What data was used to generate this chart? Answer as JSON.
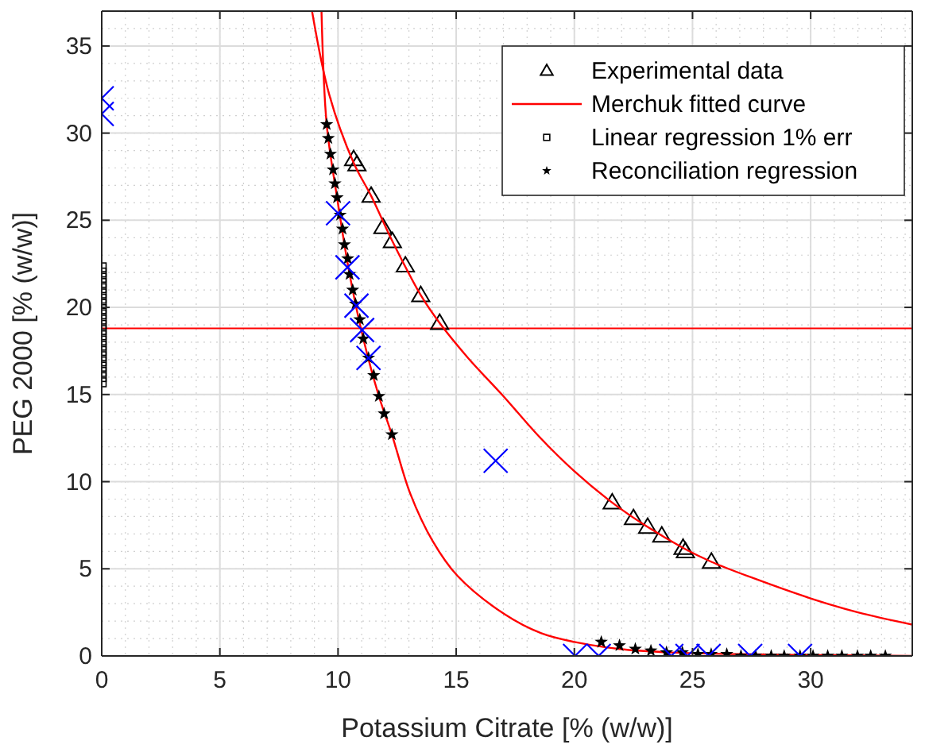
{
  "chart_data": {
    "type": "scatter",
    "xlabel": "Potassium Citrate [% (w/w)]",
    "ylabel": "PEG 2000 [% (w/w)]",
    "xlim": [
      0,
      34.3
    ],
    "ylim": [
      0,
      37
    ],
    "xticks": [
      0,
      5,
      10,
      15,
      20,
      25,
      30
    ],
    "yticks": [
      0,
      5,
      10,
      15,
      20,
      25,
      30,
      35
    ],
    "grid": true,
    "legend": "top right",
    "ref_lines": [
      {
        "axis": "y",
        "value": 18.8,
        "color": "#ff0000"
      }
    ],
    "series": [
      {
        "name": "Experimental data",
        "marker": "triangle",
        "color": "#000000",
        "x": [
          10.66,
          10.8,
          11.4,
          11.9,
          12.3,
          12.85,
          13.5,
          14.3,
          21.6,
          22.5,
          23.1,
          23.7,
          24.6,
          24.7,
          25.8
        ],
        "values": [
          28.5,
          28.2,
          26.4,
          24.6,
          23.8,
          22.4,
          20.7,
          19.1,
          8.8,
          7.9,
          7.4,
          6.9,
          6.2,
          6.0,
          5.4
        ]
      },
      {
        "name": "Merchuk fitted curve",
        "type": "line",
        "marker": "none",
        "line_style": "solid",
        "color": "#ff0000",
        "x": [
          8.9,
          9.63,
          10.66,
          11.4,
          12.3,
          13.5,
          14.3,
          15.5,
          17,
          18.5,
          20,
          21.6,
          23.1,
          24.6,
          25.8,
          27.5,
          30,
          32,
          34.3
        ],
        "values": [
          37,
          32.2,
          28.3,
          26.4,
          23.8,
          20.7,
          19.1,
          17.1,
          14.9,
          12.6,
          10.6,
          8.8,
          7.4,
          6.2,
          5.4,
          4.5,
          3.3,
          2.5,
          1.8
        ]
      },
      {
        "type": "line",
        "marker": "none",
        "line_style": "solid",
        "color": "#ff0000",
        "x": [
          9.3,
          9.52,
          9.96,
          10.49,
          11.07,
          11.73,
          12.28,
          13.06,
          14,
          15.05,
          17.04,
          18.6,
          20,
          21.9,
          24.1,
          27,
          34.3
        ],
        "values": [
          37,
          30.5,
          26.3,
          21.9,
          18.2,
          14.9,
          12.7,
          9.3,
          6.6,
          4.6,
          2.4,
          1.3,
          0.8,
          0.4,
          0.2,
          0.1,
          0
        ]
      },
      {
        "name": "Linear regression 1% err",
        "marker": "square",
        "color": "#000000",
        "x": [
          0,
          0,
          0,
          0,
          0,
          0,
          0,
          0,
          0,
          0,
          0,
          0,
          0,
          0,
          0,
          0,
          0,
          0,
          0,
          0,
          0,
          0,
          0
        ],
        "values": [
          15.7,
          16.0,
          16.3,
          16.6,
          16.9,
          17.2,
          17.5,
          17.8,
          18.1,
          18.4,
          18.7,
          19.0,
          19.3,
          19.6,
          19.9,
          20.2,
          20.5,
          20.8,
          21.1,
          21.4,
          21.7,
          22.0,
          22.3
        ]
      },
      {
        "name": "Reconciliation regression",
        "marker": "star",
        "color": "#000000",
        "x": [
          9.52,
          9.59,
          9.68,
          9.79,
          9.87,
          9.96,
          10.09,
          10.19,
          10.27,
          10.41,
          10.49,
          10.62,
          10.74,
          10.92,
          11.07,
          11.29,
          11.51,
          11.73,
          11.95,
          12.28,
          21.14,
          21.91,
          22.58,
          23.24,
          23.9,
          24.57,
          25.23,
          25.79,
          26.45,
          27.05,
          27.67,
          28.33,
          28.88,
          29.55,
          30.1,
          30.72,
          31.32,
          31.98,
          32.54,
          33.16
        ],
        "values": [
          30.5,
          29.7,
          28.8,
          27.9,
          27.1,
          26.3,
          25.3,
          24.5,
          23.6,
          22.8,
          21.9,
          21.0,
          20.2,
          19.3,
          18.2,
          17.1,
          16.1,
          14.9,
          13.9,
          12.7,
          0.8,
          0.6,
          0.4,
          0.3,
          0.2,
          0.2,
          0.1,
          0.1,
          0.1,
          0,
          0,
          0,
          0,
          0,
          0,
          0,
          0,
          0,
          0,
          0
        ]
      },
      {
        "marker": "cross",
        "color": "#0000ff",
        "x": [
          0,
          0,
          10.0,
          10.4,
          10.78,
          11.02,
          11.29,
          16.67,
          20.03,
          21.03,
          24.1,
          24.79,
          25.68,
          27.44,
          29.55
        ],
        "values": [
          32.0,
          31.1,
          25.4,
          22.3,
          20.1,
          18.7,
          17.1,
          11.2,
          0,
          0,
          0,
          0,
          0,
          0,
          0
        ]
      }
    ]
  }
}
